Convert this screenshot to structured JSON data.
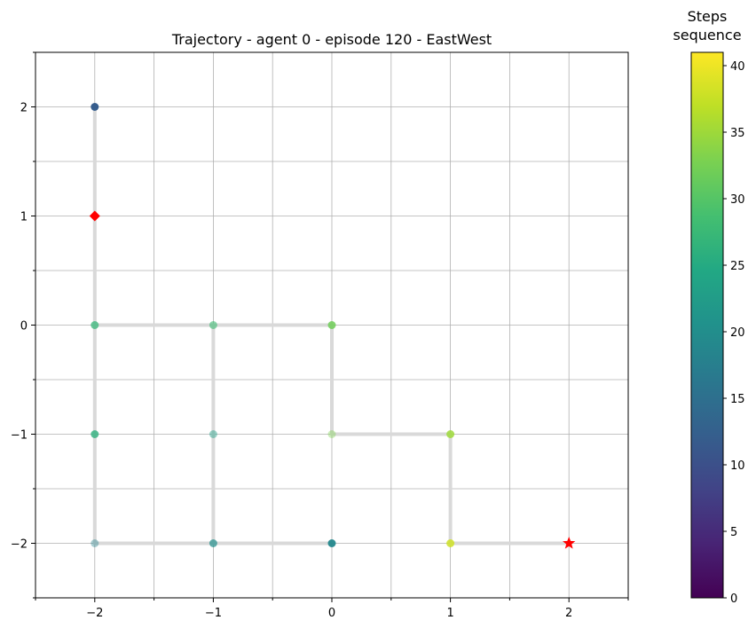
{
  "chart_data": {
    "type": "scatter",
    "title": "Trajectory - agent 0 - episode 120 - EastWest",
    "xlabel": "",
    "ylabel": "",
    "xlim": [
      -2.5,
      2.5
    ],
    "ylim": [
      -2.5,
      2.5
    ],
    "x_ticks": [
      "−2",
      "−1",
      "0",
      "1",
      "2"
    ],
    "y_ticks": [
      "−2",
      "−1",
      "0",
      "1",
      "2"
    ],
    "grid": true,
    "grid_minor_half_steps": true,
    "path": [
      {
        "x": -2,
        "y": 2
      },
      {
        "x": -2,
        "y": 1
      },
      {
        "x": -2,
        "y": 0
      },
      {
        "x": -2,
        "y": -1
      },
      {
        "x": -2,
        "y": -2
      },
      {
        "x": -1,
        "y": -2
      },
      {
        "x": 0,
        "y": -2
      },
      {
        "x": -1,
        "y": -2
      },
      {
        "x": -1,
        "y": -1
      },
      {
        "x": -1,
        "y": 0
      },
      {
        "x": -2,
        "y": 0
      },
      {
        "x": -1,
        "y": 0
      },
      {
        "x": 0,
        "y": 0
      },
      {
        "x": 0,
        "y": -1
      },
      {
        "x": 1,
        "y": -1
      },
      {
        "x": 1,
        "y": -2
      },
      {
        "x": 2,
        "y": -2
      }
    ],
    "points": [
      {
        "x": -2,
        "y": 2,
        "step": 12,
        "alpha": 1.0
      },
      {
        "x": -2,
        "y": 0,
        "step": 27,
        "alpha": 0.75
      },
      {
        "x": -2,
        "y": -1,
        "step": 26,
        "alpha": 0.8
      },
      {
        "x": -2,
        "y": -2,
        "step": 18,
        "alpha": 0.4
      },
      {
        "x": -1,
        "y": 0,
        "step": 28,
        "alpha": 0.6
      },
      {
        "x": -1,
        "y": -1,
        "step": 23,
        "alpha": 0.45
      },
      {
        "x": -1,
        "y": -2,
        "step": 20,
        "alpha": 0.7
      },
      {
        "x": 0,
        "y": 0,
        "step": 32,
        "alpha": 0.85
      },
      {
        "x": 0,
        "y": -1,
        "step": 33,
        "alpha": 0.4
      },
      {
        "x": 0,
        "y": -2,
        "step": 19,
        "alpha": 0.95
      },
      {
        "x": 1,
        "y": -1,
        "step": 35,
        "alpha": 0.85
      },
      {
        "x": 1,
        "y": -2,
        "step": 38,
        "alpha": 0.85
      }
    ],
    "start_marker": {
      "x": -2,
      "y": 1,
      "shape": "diamond",
      "color": "#ff0000"
    },
    "goal_marker": {
      "x": 2,
      "y": -2,
      "shape": "star",
      "color": "#ff0000"
    },
    "path_color": "#d9d9d9",
    "colorbar": {
      "title_line1": "Steps",
      "title_line2": "sequence",
      "min": 0,
      "max": 41,
      "ticks": [
        0,
        5,
        10,
        15,
        20,
        25,
        30,
        35,
        40
      ],
      "tick_labels": [
        "0",
        "5",
        "10",
        "15",
        "20",
        "25",
        "30",
        "35",
        "40"
      ],
      "colormap": "viridis"
    }
  }
}
